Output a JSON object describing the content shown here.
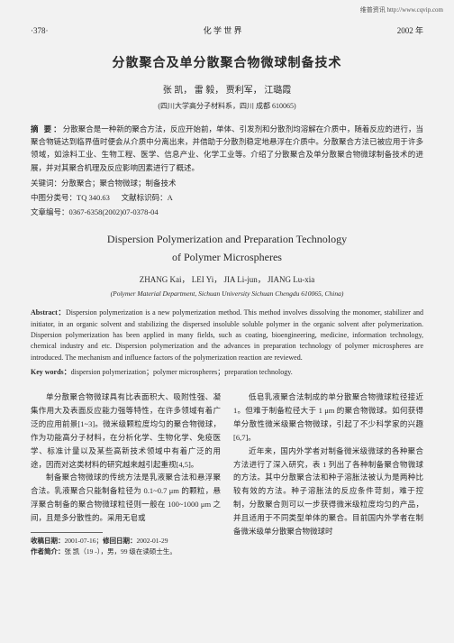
{
  "topRight": "维普资讯 http://www.cqvip.com",
  "header": {
    "pageLeft": "·378·",
    "journal": "化  学  世  界",
    "year": "2002 年"
  },
  "titleCn": "分散聚合及单分散聚合物微球制备技术",
  "authorsCn": "张 凯，  雷 毅，  贾利军，  江璐霞",
  "affilCn": "(四川大学高分子材料系，四川 成都 610065)",
  "abstractCnLabel": "摘  要：",
  "abstractCn": "分散聚合是一种新的聚合方法，反应开始前，单体、引发剂和分散剂均溶解在介质中，随着反应的进行，当聚合物链达到临界值时便会从介质中分离出来，并借助于分散剂稳定地悬浮在介质中。分散聚合方法已被应用于许多领域，如涂料工业、生物工程、医学、信息产业、化学工业等。介绍了分散聚合及单分散聚合物微球制备技术的进展，并对其聚合机理及反应影响因素进行了概述。",
  "kwCnLabel": "关键词：",
  "kwCn": "分散聚合；聚合物微球；制备技术",
  "classNumLabel": "中图分类号：",
  "classNum": "TQ 340.63",
  "docCodeLabel": "文献标识码：",
  "docCode": "A",
  "docIdLabel": "文章编号：",
  "docId": "0367-6358(2002)07-0378-04",
  "titleEn1": "Dispersion Polymerization and Preparation Technology",
  "titleEn2": "of Polymer Microspheres",
  "authorsEn": "ZHANG Kai，  LEI Yi，  JIA Li-jun，  JIANG Lu-xia",
  "affilEn": "(Polymer Material Department, Sichuan University Sichuan Chengdu 610065, China)",
  "abstractEnLabel": "Abstract：",
  "abstractEn": "Dispersion polymerization is a new polymerization method. This method involves dissolving the monomer, stabilizer and initiator, in an organic solvent and stabilizing the dispersed insoluble soluble polymer in the organic solvent after polymerization. Dispersion polymerization has been applied in many fields, such as coating, bioengineering, medicine, information technology, chemical industry and etc. Dispersion polymerization and the advances in preparation technology of polymer microspheres are introduced. The mechanism and influence factors of the polymerization reaction are reviewed.",
  "kwEnLabel": "Key words：",
  "kwEn": "dispersion polymerization；polymer microspheres；preparation technology.",
  "col1p1": "单分散聚合物微球具有比表面积大、吸附性强、凝集作用大及表面反应能力强等特性，在许多领域有着广泛的应用前景[1~3]。微米级颗粒度均匀的聚合物微球，作为功能高分子材料，在分析化学、生物化学、免疫医学、标准计量以及某些高新技术领域中有着广泛的用途，因而对这类材料的研究越来越引起重视[4,5]。",
  "col1p2": "制备聚合物微球的传统方法是乳液聚合法和悬浮聚合法。乳液聚合只能制备粒径为 0.1~0.7 μm 的颗粒，悬浮聚合制备的聚合物微球粒径则一般在 100~1000 μm 之间，且是多分散性的。采用无皂或",
  "col2p1": "低皂乳液聚合法制成的单分散聚合物微球粒径接近 1。但难于制备粒径大于 1 μm 的聚合物微球。如何获得单分散性微米级聚合物微球，引起了不少科学家的兴趣[6,7]。",
  "col2p2": "近年来，国内外学者对制备微米级微球的各种聚合方法进行了深入研究，表 1 列出了各种制备聚合物微球的方法。其中分散聚合法和种子溶胀法被认为是两种比较有效的方法。种子溶胀法的反应条件苛刻，难于控制，分散聚合则可以一步获得微米级粒度均匀的产品，并且适用于不同类型单体的聚合。目前国内外学者在制备微米级单分散聚合物微球时",
  "foot": {
    "recvLabel": "收稿日期：",
    "recv": "2001-07-16；",
    "revLabel": "修回日期：",
    "rev": "2002-01-29",
    "authLabel": "作者简介：",
    "auth": "张  凯（19  -），男，99 级在读硕士生。"
  }
}
